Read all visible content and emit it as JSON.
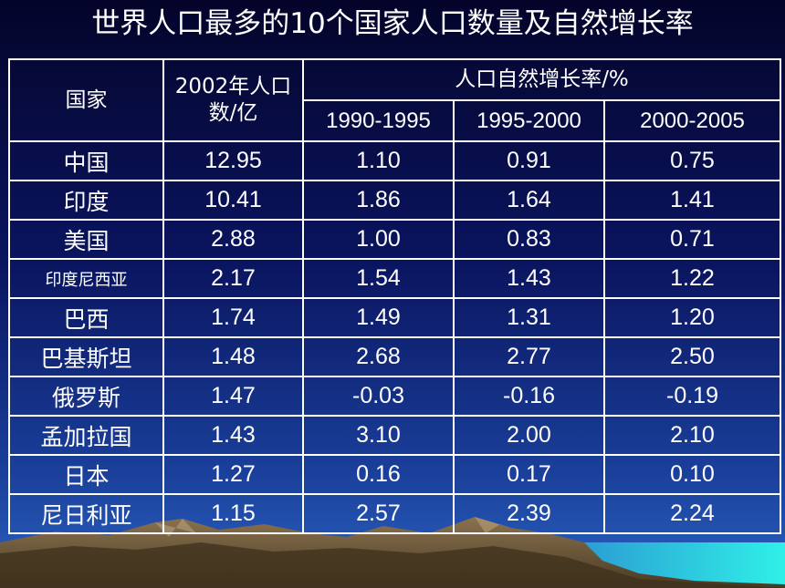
{
  "title": "世界人口最多的10个国家人口数量及自然增长率",
  "headers": {
    "country": "国家",
    "population": "2002年人口数/亿",
    "growth_rate": "人口自然增长率/%",
    "periods": [
      "1990-1995",
      "1995-2000",
      "2000-2005"
    ]
  },
  "rows": [
    {
      "country": "中国",
      "population": "12.95",
      "r1": "1.10",
      "r2": "0.91",
      "r3": "0.75"
    },
    {
      "country": "印度",
      "population": "10.41",
      "r1": "1.86",
      "r2": "1.64",
      "r3": "1.41"
    },
    {
      "country": "美国",
      "population": "2.88",
      "r1": "1.00",
      "r2": "0.83",
      "r3": "0.71"
    },
    {
      "country": "印度尼西亚",
      "population": "2.17",
      "r1": "1.54",
      "r2": "1.43",
      "r3": "1.22"
    },
    {
      "country": "巴西",
      "population": "1.74",
      "r1": "1.49",
      "r2": "1.31",
      "r3": "1.20"
    },
    {
      "country": "巴基斯坦",
      "population": "1.48",
      "r1": "2.68",
      "r2": "2.77",
      "r3": "2.50"
    },
    {
      "country": "俄罗斯",
      "population": "1.47",
      "r1": "-0.03",
      "r2": "-0.16",
      "r3": "-0.19"
    },
    {
      "country": "孟加拉国",
      "population": "1.43",
      "r1": "3.10",
      "r2": "2.00",
      "r3": "2.10"
    },
    {
      "country": "日本",
      "population": "1.27",
      "r1": "0.16",
      "r2": "0.17",
      "r3": "0.10"
    },
    {
      "country": "尼日利亚",
      "population": "1.15",
      "r1": "2.57",
      "r2": "2.39",
      "r3": "2.24"
    }
  ],
  "colors": {
    "background_top": "#04042a",
    "background_bottom": "#2a63c0",
    "grid_lines": "#ffffff",
    "text": "#ffffff"
  }
}
